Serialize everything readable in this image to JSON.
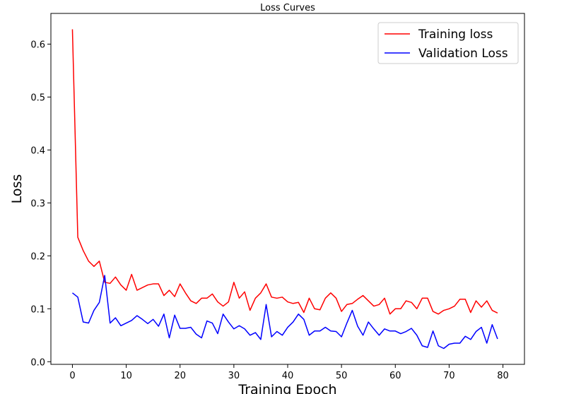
{
  "chart_data": {
    "type": "line",
    "title": "Loss Curves",
    "xlabel": "Training Epoch",
    "ylabel": "Loss",
    "xlim": [
      -4,
      84
    ],
    "ylim": [
      -0.005,
      0.658
    ],
    "xticks": [
      0,
      10,
      20,
      30,
      40,
      50,
      60,
      70,
      80
    ],
    "yticks": [
      0.0,
      0.1,
      0.2,
      0.3,
      0.4,
      0.5,
      0.6
    ],
    "ytick_labels": [
      "0.0",
      "0.1",
      "0.2",
      "0.3",
      "0.4",
      "0.5",
      "0.6"
    ],
    "grid": false,
    "legend_position": "top-right",
    "x": [
      0,
      1,
      2,
      3,
      4,
      5,
      6,
      7,
      8,
      9,
      10,
      11,
      12,
      13,
      14,
      15,
      16,
      17,
      18,
      19,
      20,
      21,
      22,
      23,
      24,
      25,
      26,
      27,
      28,
      29,
      30,
      31,
      32,
      33,
      34,
      35,
      36,
      37,
      38,
      39,
      40,
      41,
      42,
      43,
      44,
      45,
      46,
      47,
      48,
      49,
      50,
      51,
      52,
      53,
      54,
      55,
      56,
      57,
      58,
      59,
      60,
      61,
      62,
      63,
      64,
      65,
      66,
      67,
      68,
      69,
      70,
      71,
      72,
      73,
      74,
      75,
      76,
      77,
      78,
      79
    ],
    "series": [
      {
        "name": "Training loss",
        "color": "#ff0000",
        "values": [
          0.628,
          0.235,
          0.21,
          0.19,
          0.18,
          0.19,
          0.15,
          0.148,
          0.16,
          0.145,
          0.135,
          0.165,
          0.135,
          0.14,
          0.145,
          0.147,
          0.147,
          0.125,
          0.135,
          0.123,
          0.147,
          0.13,
          0.115,
          0.11,
          0.12,
          0.12,
          0.128,
          0.113,
          0.105,
          0.113,
          0.15,
          0.12,
          0.132,
          0.097,
          0.12,
          0.13,
          0.147,
          0.122,
          0.12,
          0.122,
          0.113,
          0.11,
          0.112,
          0.093,
          0.12,
          0.1,
          0.098,
          0.12,
          0.13,
          0.12,
          0.095,
          0.108,
          0.11,
          0.118,
          0.125,
          0.115,
          0.105,
          0.108,
          0.12,
          0.09,
          0.1,
          0.1,
          0.115,
          0.112,
          0.1,
          0.12,
          0.12,
          0.095,
          0.09,
          0.097,
          0.1,
          0.105,
          0.118,
          0.118,
          0.093,
          0.115,
          0.103,
          0.115,
          0.097,
          0.092
        ]
      },
      {
        "name": "Validation Loss",
        "color": "#0000ff",
        "values": [
          0.13,
          0.122,
          0.075,
          0.073,
          0.097,
          0.112,
          0.163,
          0.073,
          0.083,
          0.068,
          0.073,
          0.078,
          0.087,
          0.08,
          0.072,
          0.08,
          0.067,
          0.09,
          0.045,
          0.088,
          0.063,
          0.063,
          0.065,
          0.052,
          0.045,
          0.077,
          0.073,
          0.053,
          0.09,
          0.075,
          0.062,
          0.068,
          0.062,
          0.05,
          0.055,
          0.042,
          0.108,
          0.047,
          0.057,
          0.05,
          0.065,
          0.075,
          0.09,
          0.08,
          0.05,
          0.058,
          0.058,
          0.065,
          0.058,
          0.057,
          0.047,
          0.073,
          0.097,
          0.067,
          0.05,
          0.075,
          0.062,
          0.05,
          0.062,
          0.058,
          0.058,
          0.053,
          0.057,
          0.063,
          0.05,
          0.03,
          0.027,
          0.058,
          0.03,
          0.025,
          0.033,
          0.035,
          0.035,
          0.048,
          0.042,
          0.057,
          0.065,
          0.035,
          0.07,
          0.043
        ]
      }
    ]
  }
}
